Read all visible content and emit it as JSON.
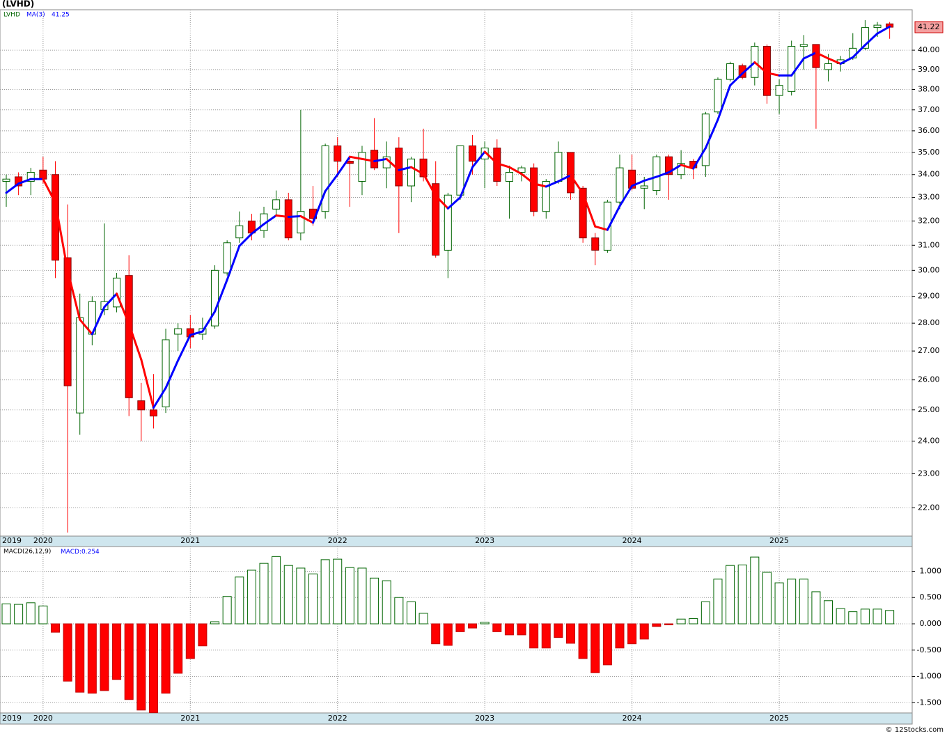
{
  "title": "(LVHD)",
  "footer": "© 12Stocks.com",
  "chart_data": [
    {
      "type": "candlestick",
      "symbol": "LVHD",
      "log_scale": true,
      "grid": true,
      "categories": [
        "2019",
        null,
        null,
        "2020",
        null,
        null,
        null,
        null,
        null,
        null,
        null,
        null,
        null,
        null,
        null,
        "2021",
        null,
        null,
        null,
        null,
        null,
        null,
        null,
        null,
        null,
        null,
        null,
        "2022",
        null,
        null,
        null,
        null,
        null,
        null,
        null,
        null,
        null,
        null,
        null,
        "2023",
        null,
        null,
        null,
        null,
        null,
        null,
        null,
        null,
        null,
        null,
        null,
        "2024",
        null,
        null,
        null,
        null,
        null,
        null,
        null,
        null,
        null,
        null,
        null,
        "2025",
        null,
        null,
        null,
        null,
        null,
        null,
        null,
        null,
        null
      ],
      "open": [
        33.7,
        33.9,
        33.7,
        34.2,
        34.0,
        30.5,
        24.9,
        27.6,
        28.5,
        28.6,
        29.8,
        25.3,
        25.0,
        25.1,
        27.6,
        27.8,
        27.6,
        27.9,
        29.9,
        31.3,
        32.0,
        31.6,
        32.5,
        32.9,
        31.5,
        32.5,
        32.4,
        35.3,
        34.6,
        33.7,
        35.1,
        34.3,
        35.2,
        33.5,
        34.7,
        33.6,
        30.8,
        33.1,
        35.3,
        34.7,
        35.2,
        33.7,
        34.1,
        34.3,
        32.4,
        33.7,
        35.0,
        33.4,
        31.3,
        30.8,
        32.8,
        34.2,
        33.4,
        33.3,
        34.8,
        34.0,
        34.6,
        34.4,
        36.9,
        38.5,
        39.2,
        38.6,
        40.2,
        37.7,
        37.9,
        40.2,
        40.3,
        39.0,
        39.3,
        39.6,
        40.1,
        41.2,
        41.4
      ],
      "high": [
        34.0,
        34.1,
        34.3,
        34.8,
        34.6,
        32.7,
        29.1,
        29.0,
        31.9,
        29.9,
        30.6,
        25.9,
        26.2,
        27.8,
        28.0,
        28.3,
        28.2,
        30.2,
        31.2,
        32.4,
        32.3,
        32.6,
        33.3,
        33.2,
        37.0,
        33.5,
        35.4,
        35.7,
        34.8,
        35.3,
        36.6,
        35.5,
        35.7,
        34.8,
        36.1,
        34.6,
        33.2,
        35.3,
        35.8,
        35.5,
        35.6,
        34.4,
        34.4,
        34.5,
        33.8,
        35.5,
        35.0,
        33.5,
        31.5,
        32.9,
        34.9,
        34.9,
        33.9,
        34.9,
        34.9,
        35.1,
        34.7,
        36.9,
        38.6,
        39.4,
        39.3,
        40.4,
        40.3,
        38.5,
        40.5,
        40.8,
        40.3,
        39.8,
        39.7,
        40.9,
        41.6,
        41.5,
        41.5
      ],
      "low": [
        32.6,
        33.1,
        33.1,
        33.6,
        29.7,
        21.3,
        24.2,
        27.2,
        28.3,
        28.4,
        24.8,
        24.0,
        24.4,
        24.9,
        27.0,
        27.1,
        27.4,
        27.8,
        29.8,
        31.1,
        31.2,
        31.3,
        32.2,
        31.2,
        31.2,
        31.8,
        32.1,
        33.9,
        32.6,
        33.1,
        34.2,
        33.4,
        31.5,
        32.8,
        33.7,
        30.5,
        29.7,
        32.9,
        34.0,
        33.4,
        33.5,
        32.1,
        33.7,
        32.2,
        32.1,
        33.6,
        32.9,
        31.1,
        30.2,
        30.7,
        32.5,
        33.3,
        32.5,
        33.1,
        32.9,
        33.8,
        33.8,
        33.9,
        36.8,
        38.4,
        38.5,
        38.2,
        37.3,
        36.8,
        37.7,
        39.0,
        36.1,
        38.4,
        38.9,
        39.5,
        40.0,
        40.7,
        40.6
      ],
      "close": [
        33.8,
        33.5,
        34.1,
        33.8,
        30.4,
        25.8,
        28.2,
        28.8,
        28.8,
        29.7,
        25.4,
        25.0,
        24.8,
        27.4,
        27.8,
        27.5,
        27.8,
        30.0,
        31.1,
        31.8,
        31.5,
        32.3,
        32.9,
        31.3,
        32.4,
        32.1,
        35.3,
        34.6,
        34.5,
        35.0,
        34.3,
        34.8,
        33.5,
        34.7,
        33.9,
        30.6,
        33.1,
        35.3,
        34.6,
        35.2,
        33.7,
        34.1,
        34.3,
        32.4,
        33.7,
        35.0,
        33.2,
        31.3,
        30.8,
        32.8,
        34.3,
        33.4,
        33.5,
        34.8,
        34.0,
        34.5,
        34.3,
        36.8,
        38.5,
        39.3,
        38.6,
        40.2,
        37.7,
        38.2,
        40.2,
        40.3,
        39.1,
        39.3,
        39.5,
        40.1,
        41.2,
        41.33,
        41.22
      ],
      "up_color": "#006400",
      "down_color": "#ff0000",
      "ma": {
        "name": "MA(3)",
        "up_color": "#0000ff",
        "down_color": "#ff0000",
        "values": [
          33.2,
          33.6,
          33.8,
          33.8,
          32.77,
          30.0,
          28.13,
          27.6,
          28.6,
          29.1,
          27.97,
          26.7,
          25.07,
          25.73,
          26.67,
          27.57,
          27.7,
          28.43,
          29.63,
          30.97,
          31.47,
          31.87,
          32.23,
          32.17,
          32.2,
          31.93,
          33.27,
          34.0,
          34.8,
          34.7,
          34.6,
          34.7,
          34.2,
          34.33,
          34.03,
          33.07,
          32.53,
          33.0,
          34.33,
          35.03,
          34.5,
          34.33,
          34.03,
          33.6,
          33.47,
          33.7,
          33.97,
          33.17,
          31.77,
          31.63,
          32.63,
          33.5,
          33.73,
          33.9,
          34.1,
          34.43,
          34.27,
          35.2,
          36.53,
          38.2,
          38.8,
          39.37,
          38.83,
          38.7,
          38.7,
          39.57,
          39.87,
          39.57,
          39.3,
          39.63,
          40.27,
          40.88,
          41.25
        ]
      },
      "ylim": [
        21.2,
        42.17
      ],
      "yticks": [
        {
          "value": 22,
          "label": "22.00"
        },
        {
          "value": 23,
          "label": "23.00"
        },
        {
          "value": 24,
          "label": "24.00"
        },
        {
          "value": 25,
          "label": "25.00"
        },
        {
          "value": 26,
          "label": "26.00"
        },
        {
          "value": 27,
          "label": "27.00"
        },
        {
          "value": 28,
          "label": "28.00"
        },
        {
          "value": 29,
          "label": "29.00"
        },
        {
          "value": 30,
          "label": "30.00"
        },
        {
          "value": 31,
          "label": "31.00"
        },
        {
          "value": 32,
          "label": "32.00"
        },
        {
          "value": 33,
          "label": "33.00"
        },
        {
          "value": 34,
          "label": "34.00"
        },
        {
          "value": 35,
          "label": "35.00"
        },
        {
          "value": 36,
          "label": "36.00"
        },
        {
          "value": 37,
          "label": "37.00"
        },
        {
          "value": 38,
          "label": "38.00"
        },
        {
          "value": 39,
          "label": "39.00"
        },
        {
          "value": 40,
          "label": "40.00"
        }
      ]
    },
    {
      "type": "bar",
      "name": "MACD(26,12,9)",
      "value_prefix": "MACD:",
      "grid": true,
      "categories": [
        "2019",
        null,
        null,
        "2020",
        null,
        null,
        null,
        null,
        null,
        null,
        null,
        null,
        null,
        null,
        null,
        "2021",
        null,
        null,
        null,
        null,
        null,
        null,
        null,
        null,
        null,
        null,
        null,
        "2022",
        null,
        null,
        null,
        null,
        null,
        null,
        null,
        null,
        null,
        null,
        null,
        "2023",
        null,
        null,
        null,
        null,
        null,
        null,
        null,
        null,
        null,
        null,
        null,
        "2024",
        null,
        null,
        null,
        null,
        null,
        null,
        null,
        null,
        null,
        null,
        null,
        "2025",
        null,
        null,
        null,
        null,
        null,
        null,
        null,
        null,
        null
      ],
      "values": [
        0.38,
        0.37,
        0.4,
        0.34,
        -0.16,
        -1.09,
        -1.3,
        -1.32,
        -1.27,
        -1.06,
        -1.44,
        -1.64,
        -1.69,
        -1.32,
        -0.94,
        -0.66,
        -0.42,
        0.04,
        0.52,
        0.89,
        1.02,
        1.15,
        1.28,
        1.11,
        1.06,
        0.95,
        1.22,
        1.23,
        1.07,
        1.06,
        0.87,
        0.82,
        0.5,
        0.42,
        0.2,
        -0.38,
        -0.41,
        -0.15,
        -0.08,
        0.03,
        -0.15,
        -0.21,
        -0.21,
        -0.46,
        -0.46,
        -0.26,
        -0.37,
        -0.66,
        -0.93,
        -0.78,
        -0.46,
        -0.38,
        -0.29,
        -0.05,
        -0.02,
        0.09,
        0.1,
        0.42,
        0.85,
        1.11,
        1.12,
        1.27,
        0.98,
        0.78,
        0.85,
        0.85,
        0.61,
        0.44,
        0.29,
        0.23,
        0.28,
        0.28,
        0.254
      ],
      "up_color": "#006400",
      "down_color": "#ff0000",
      "ylim": [
        -1.695,
        1.47
      ],
      "yticks": [
        {
          "value": 1,
          "label": "1.000"
        },
        {
          "value": 0.5,
          "label": "0.500"
        },
        {
          "value": 0,
          "label": "0.000"
        },
        {
          "value": -0.5,
          "label": "-0.500"
        },
        {
          "value": -1,
          "label": "-1.000"
        },
        {
          "value": -1.5,
          "label": "-1.500"
        }
      ]
    }
  ]
}
